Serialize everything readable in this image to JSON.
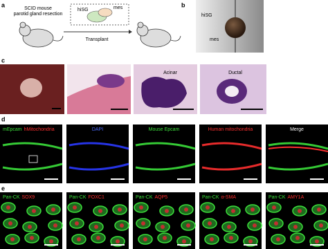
{
  "panels": {
    "a": {
      "label": "a",
      "mouse_text": [
        "SCID mouse",
        "parotid gland resection"
      ],
      "hisg": "hiSG",
      "mes": "mes",
      "transplant": "Transplant"
    },
    "b": {
      "label": "b",
      "hisg": "hiSG",
      "mes": "mes"
    },
    "c": {
      "label": "c",
      "acinar": "Acinar",
      "ductal": "Ductal"
    },
    "d": {
      "label": "d",
      "images": [
        [
          {
            "text": "mEpcam",
            "color": "#3be03b"
          },
          {
            "text": "hMitochondria",
            "color": "#ff3030"
          }
        ],
        [
          {
            "text": "DAPI",
            "color": "#4a6bff"
          }
        ],
        [
          {
            "text": "Mouse Epcam",
            "color": "#3be03b"
          }
        ],
        [
          {
            "text": "Human mitochondria",
            "color": "#ff3030"
          }
        ],
        [
          {
            "text": "Merge",
            "color": "#ffffff"
          }
        ]
      ]
    },
    "e": {
      "label": "e",
      "images": [
        [
          {
            "text": "Pan-CK",
            "color": "#3be03b"
          },
          {
            "text": "SOX9",
            "color": "#ff3030"
          }
        ],
        [
          {
            "text": "Pan-CK",
            "color": "#3be03b"
          },
          {
            "text": "FOXC1",
            "color": "#ff3030"
          }
        ],
        [
          {
            "text": "Pan-CK",
            "color": "#3be03b"
          },
          {
            "text": "AQP5",
            "color": "#ff3030"
          }
        ],
        [
          {
            "text": "Pan-CK",
            "color": "#3be03b"
          },
          {
            "text": "α-SMA",
            "color": "#ff3030"
          }
        ],
        [
          {
            "text": "Pan-CK",
            "color": "#3be03b"
          },
          {
            "text": "AMY1A",
            "color": "#ff3030"
          }
        ]
      ]
    }
  }
}
